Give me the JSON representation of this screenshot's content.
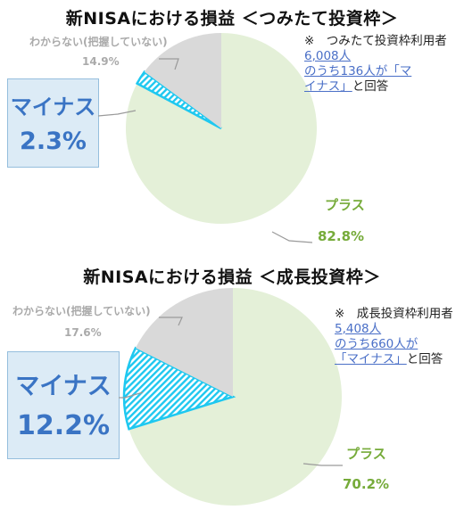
{
  "colors": {
    "plus": "#e4f0d8",
    "minus_stroke": "#1ec8f0",
    "unknown": "#d9d9d9",
    "plus_text": "#76ab3a",
    "minus_text": "#3a74c4",
    "unknown_text": "#aaaaaa",
    "link": "#4a6fc7"
  },
  "chart_data": [
    {
      "type": "pie",
      "title": "新NISAにおける損益 ＜つみたて投資枠＞",
      "slices": [
        {
          "name": "プラス",
          "value": 82.8,
          "label": "82.8%"
        },
        {
          "name": "マイナス",
          "value": 2.3,
          "label": "2.3%"
        },
        {
          "name": "わからない(把握していない)",
          "value": 14.9,
          "label": "14.9%"
        }
      ],
      "note": {
        "prefix": "※　つみたて投資枠利用者",
        "link_parts": [
          "6,008人",
          "のうち136人が「マ",
          "イナス」"
        ],
        "suffix": "と回答"
      }
    },
    {
      "type": "pie",
      "title": "新NISAにおける損益 ＜成長投資枠＞",
      "slices": [
        {
          "name": "プラス",
          "value": 70.2,
          "label": "70.2%"
        },
        {
          "name": "マイナス",
          "value": 12.2,
          "label": "12.2%"
        },
        {
          "name": "わからない(把握していない)",
          "value": 17.6,
          "label": "17.6%"
        }
      ],
      "note": {
        "prefix": "※　成長投資枠利用者",
        "link_parts": [
          "5,408人",
          "のうち660人が",
          "「マイナス」"
        ],
        "suffix": "と回答"
      }
    }
  ]
}
